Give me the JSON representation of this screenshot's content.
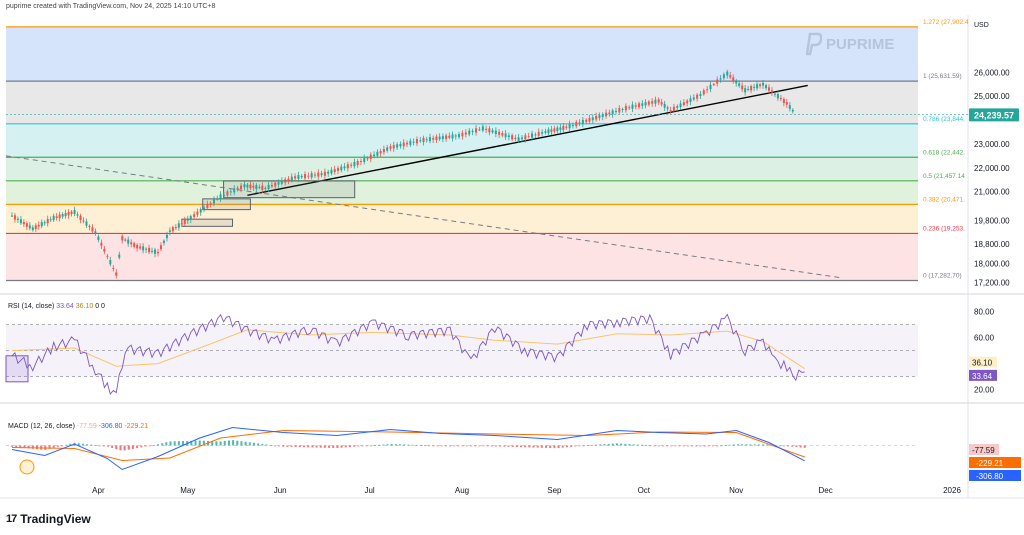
{
  "header": {
    "text": "puprime created with TradingView.com, Nov 24, 2025 14:10 UTC+8"
  },
  "watermark": {
    "text": "PUPRIME"
  },
  "footer": {
    "logo_text": "TradingView",
    "logo_mark": "17"
  },
  "currency": "USD",
  "colors": {
    "up": "#26a69a",
    "down": "#ef5350",
    "rsi": "#7e57c2",
    "rsi_ma": "#f9c56b",
    "macd": "#2962ff",
    "signal": "#ff6d00",
    "trend": "#000000"
  },
  "chart_data": [
    {
      "type": "candlestick",
      "title": "",
      "price_labels": [
        "26,000.00",
        "25,000.00",
        "23,000.00",
        "22,000.00",
        "21,000.00",
        "19,800.00",
        "18,800.00",
        "18,000.00",
        "17,200.00"
      ],
      "price_ticks": [
        26000,
        25000,
        23000,
        22000,
        21000,
        19800,
        18800,
        18000,
        17200
      ],
      "ylim": [
        16800,
        28400
      ],
      "current_price": {
        "label": "24,239.57",
        "value": 24239.57
      },
      "x_labels": [
        "Apr",
        "May",
        "Jun",
        "Jul",
        "Aug",
        "Sep",
        "Oct",
        "Nov",
        "Dec",
        "2026"
      ],
      "x_range": [
        "2025-03-01",
        "2026-01-01"
      ],
      "series_points": [
        [
          "2025-03-03",
          20000
        ],
        [
          "2025-03-10",
          19450
        ],
        [
          "2025-03-17",
          19900
        ],
        [
          "2025-03-24",
          20150
        ],
        [
          "2025-03-31",
          19300
        ],
        [
          "2025-04-04",
          18300
        ],
        [
          "2025-04-07",
          17550
        ],
        [
          "2025-04-09",
          19050
        ],
        [
          "2025-04-14",
          18700
        ],
        [
          "2025-04-21",
          18450
        ],
        [
          "2025-04-25",
          19350
        ],
        [
          "2025-05-02",
          19900
        ],
        [
          "2025-05-12",
          20800
        ],
        [
          "2025-05-20",
          21250
        ],
        [
          "2025-05-27",
          21150
        ],
        [
          "2025-06-06",
          21600
        ],
        [
          "2025-06-16",
          21750
        ],
        [
          "2025-06-27",
          22200
        ],
        [
          "2025-07-08",
          22850
        ],
        [
          "2025-07-18",
          23150
        ],
        [
          "2025-07-31",
          23350
        ],
        [
          "2025-08-08",
          23650
        ],
        [
          "2025-08-20",
          23200
        ],
        [
          "2025-08-29",
          23500
        ],
        [
          "2025-09-05",
          23700
        ],
        [
          "2025-09-15",
          24100
        ],
        [
          "2025-09-25",
          24500
        ],
        [
          "2025-10-06",
          24800
        ],
        [
          "2025-10-10",
          24400
        ],
        [
          "2025-10-20",
          25050
        ],
        [
          "2025-10-29",
          25950
        ],
        [
          "2025-11-04",
          25250
        ],
        [
          "2025-11-10",
          25500
        ],
        [
          "2025-11-14",
          25100
        ],
        [
          "2025-11-18",
          24700
        ],
        [
          "2025-11-21",
          24239.57
        ]
      ],
      "fibonacci": [
        {
          "ratio": "1.272",
          "label": "1.272 (27,902.4",
          "value": 27902.4,
          "color": "#ff9800"
        },
        {
          "ratio": "1",
          "label": "1 (25,631.59)",
          "value": 25631.59,
          "color": "#787b86"
        },
        {
          "ratio": "0.786",
          "label": "0.786 (23,844.",
          "value": 23844,
          "color": "#26c6da"
        },
        {
          "ratio": "0.618",
          "label": "0.618 (22,442.",
          "value": 22442,
          "color": "#4caf50"
        },
        {
          "ratio": "0.5",
          "label": "0.5 (21,457.14",
          "value": 21457.14,
          "color": "#4caf50"
        },
        {
          "ratio": "0.382",
          "label": "0.382 (20,471.",
          "value": 20471,
          "color": "#ff9800"
        },
        {
          "ratio": "0.236",
          "label": "0.236 (19,253.",
          "value": 19253,
          "color": "#f23645"
        },
        {
          "ratio": "0",
          "label": "0 (17,282.70)",
          "value": 17282.7,
          "color": "#787b86"
        }
      ],
      "fib_zones": [
        {
          "from": 25631.59,
          "to": 27902.4,
          "color": "#d6e4fb"
        },
        {
          "from": 23844,
          "to": 25631.59,
          "color": "#e8e8e8"
        },
        {
          "from": 22442,
          "to": 23844,
          "color": "#d5f1f2"
        },
        {
          "from": 21457.14,
          "to": 22442,
          "color": "#dcf1e4"
        },
        {
          "from": 20471,
          "to": 21457.14,
          "color": "#e0f2dc"
        },
        {
          "from": 19253,
          "to": 20471,
          "color": "#fdf0d4"
        },
        {
          "from": 17282.7,
          "to": 19253,
          "color": "#fde3e3"
        }
      ],
      "trendline": {
        "from": [
          "2025-05-21",
          20850
        ],
        "to": [
          "2025-11-25",
          25450
        ]
      },
      "dashed_line": {
        "from": [
          "2025-03-01",
          22500
        ],
        "to": [
          "2025-12-06",
          17400
        ]
      }
    },
    {
      "type": "line",
      "title": "RSI",
      "legend": {
        "name": "RSI (14, close)",
        "v1": "33.64",
        "v2": "36.10",
        "v3": "0",
        "v4": "0"
      },
      "ylim": [
        12,
        92
      ],
      "y_labels": [
        "80.00",
        "60.00",
        "20.00"
      ],
      "y_ticks": [
        80,
        60,
        20
      ],
      "bands": [
        70,
        50,
        30
      ],
      "rsi_value": {
        "label": "33.64",
        "value": 33.64
      },
      "ma_value": {
        "label": "36.10",
        "value": 36.1
      },
      "series_points": [
        [
          "2025-03-03",
          46
        ],
        [
          "2025-03-10",
          38
        ],
        [
          "2025-03-17",
          53
        ],
        [
          "2025-03-24",
          58
        ],
        [
          "2025-03-31",
          35
        ],
        [
          "2025-04-04",
          22
        ],
        [
          "2025-04-07",
          17
        ],
        [
          "2025-04-10",
          52
        ],
        [
          "2025-04-21",
          48
        ],
        [
          "2025-05-02",
          63
        ],
        [
          "2025-05-13",
          76
        ],
        [
          "2025-05-21",
          66
        ],
        [
          "2025-05-30",
          58
        ],
        [
          "2025-06-11",
          67
        ],
        [
          "2025-06-20",
          56
        ],
        [
          "2025-07-02",
          72
        ],
        [
          "2025-07-14",
          62
        ],
        [
          "2025-07-28",
          66
        ],
        [
          "2025-08-04",
          42
        ],
        [
          "2025-08-12",
          68
        ],
        [
          "2025-08-22",
          50
        ],
        [
          "2025-09-02",
          45
        ],
        [
          "2025-09-12",
          70
        ],
        [
          "2025-09-22",
          72
        ],
        [
          "2025-10-03",
          75
        ],
        [
          "2025-10-10",
          47
        ],
        [
          "2025-10-22",
          64
        ],
        [
          "2025-10-29",
          75
        ],
        [
          "2025-11-04",
          50
        ],
        [
          "2025-11-10",
          58
        ],
        [
          "2025-11-14",
          42
        ],
        [
          "2025-11-18",
          38
        ],
        [
          "2025-11-20",
          30
        ],
        [
          "2025-11-24",
          33.64
        ]
      ],
      "ma_points": [
        [
          "2025-03-03",
          50
        ],
        [
          "2025-03-24",
          52
        ],
        [
          "2025-04-07",
          38
        ],
        [
          "2025-04-21",
          40
        ],
        [
          "2025-05-05",
          52
        ],
        [
          "2025-05-21",
          66
        ],
        [
          "2025-06-11",
          62
        ],
        [
          "2025-07-02",
          64
        ],
        [
          "2025-07-28",
          62
        ],
        [
          "2025-08-12",
          58
        ],
        [
          "2025-09-02",
          55
        ],
        [
          "2025-09-22",
          63
        ],
        [
          "2025-10-10",
          62
        ],
        [
          "2025-10-29",
          65
        ],
        [
          "2025-11-10",
          57
        ],
        [
          "2025-11-24",
          36.1
        ]
      ]
    },
    {
      "type": "line",
      "title": "MACD",
      "legend": {
        "name": "MACD (12, 26, close)",
        "v1": "-77.59",
        "v2": "-306.80",
        "v3": "-229.21"
      },
      "ylim": [
        -650,
        550
      ],
      "hist_value": {
        "label": "-77.59",
        "value": -77.59
      },
      "signal_value": {
        "label": "-229.21",
        "value": -229.21
      },
      "macd_value": {
        "label": "-306.80",
        "value": -306.8
      },
      "macd_points": [
        [
          "2025-03-03",
          -80
        ],
        [
          "2025-03-14",
          -200
        ],
        [
          "2025-03-24",
          30
        ],
        [
          "2025-04-04",
          -260
        ],
        [
          "2025-04-09",
          -480
        ],
        [
          "2025-04-21",
          -220
        ],
        [
          "2025-05-05",
          150
        ],
        [
          "2025-05-16",
          360
        ],
        [
          "2025-06-02",
          260
        ],
        [
          "2025-06-20",
          200
        ],
        [
          "2025-07-08",
          320
        ],
        [
          "2025-07-25",
          240
        ],
        [
          "2025-08-12",
          200
        ],
        [
          "2025-09-02",
          120
        ],
        [
          "2025-09-22",
          300
        ],
        [
          "2025-10-06",
          260
        ],
        [
          "2025-10-22",
          230
        ],
        [
          "2025-11-01",
          300
        ],
        [
          "2025-11-12",
          60
        ],
        [
          "2025-11-24",
          -306.8
        ]
      ],
      "signal_points": [
        [
          "2025-03-03",
          -40
        ],
        [
          "2025-03-24",
          -60
        ],
        [
          "2025-04-09",
          -300
        ],
        [
          "2025-04-25",
          -250
        ],
        [
          "2025-05-12",
          150
        ],
        [
          "2025-06-02",
          300
        ],
        [
          "2025-07-08",
          270
        ],
        [
          "2025-08-12",
          230
        ],
        [
          "2025-09-12",
          200
        ],
        [
          "2025-10-06",
          270
        ],
        [
          "2025-11-01",
          260
        ],
        [
          "2025-11-24",
          -229.21
        ]
      ]
    }
  ]
}
